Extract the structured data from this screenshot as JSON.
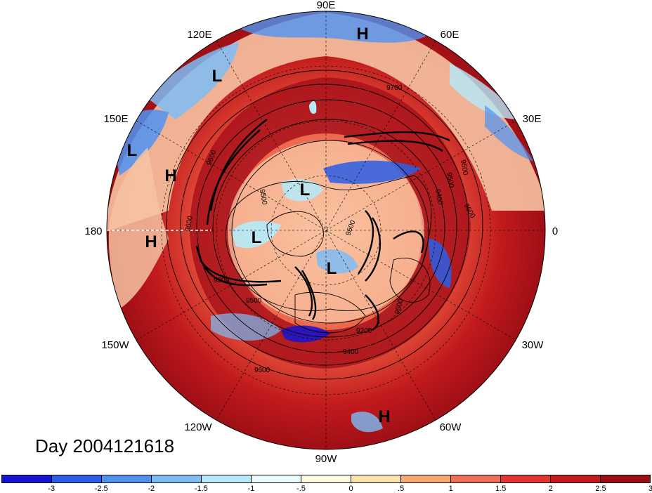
{
  "title": "Day 2004121618",
  "longitude_labels": [
    "90E",
    "60E",
    "30E",
    "0",
    "30W",
    "60W",
    "90W",
    "120W",
    "150W",
    "180",
    "150E",
    "120E"
  ],
  "pressure_centers": [
    "H",
    "L",
    "L",
    "H",
    "H",
    "L",
    "L",
    "L",
    "H"
  ],
  "contour_labels": [
    "9700",
    "9600",
    "9500",
    "9400",
    "9500",
    "9600",
    "9500",
    "9600",
    "9300",
    "9500",
    "9200",
    "9400",
    "9600",
    "9500",
    "9600"
  ],
  "colorbar": {
    "colors": [
      "#1414d2",
      "#2a5ee6",
      "#4f93f2",
      "#7cbdf6",
      "#b4eafa",
      "#e8fbff",
      "#fffbe0",
      "#fde3a8",
      "#f7a96d",
      "#ef7054",
      "#e3342f",
      "#c41a1e",
      "#9e0f15"
    ],
    "tick_labels": [
      "-3",
      "-2.5",
      "-2",
      "-1.5",
      "-1",
      "-.5",
      "0",
      ".5",
      "1",
      "1.5",
      "2",
      "2.5",
      "3"
    ]
  }
}
